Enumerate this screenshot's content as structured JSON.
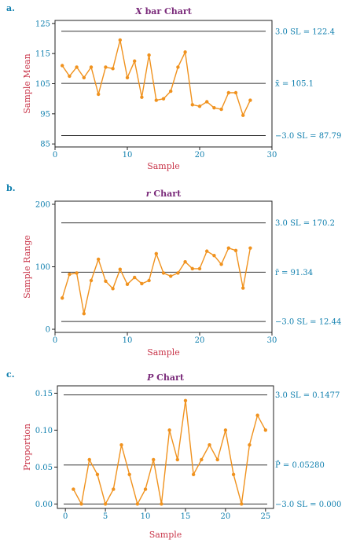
{
  "chart_data": [
    {
      "panel": "a.",
      "type": "line",
      "title": "X bar Chart",
      "title_parts": [
        "X",
        " bar Chart"
      ],
      "xlabel": "Sample",
      "ylabel": "Sample Mean",
      "xlim": [
        0,
        30
      ],
      "ylim": [
        84,
        126
      ],
      "xticks": [
        0,
        10,
        20,
        30
      ],
      "yticks": [
        85,
        95,
        105,
        115,
        125
      ],
      "x": [
        1,
        2,
        3,
        4,
        5,
        6,
        7,
        8,
        9,
        10,
        11,
        12,
        13,
        14,
        15,
        16,
        17,
        18,
        19,
        20,
        21,
        22,
        23,
        24,
        25,
        26,
        27
      ],
      "values": [
        111,
        107.5,
        110.5,
        107,
        110.5,
        101.5,
        110.5,
        110,
        119.5,
        107,
        112.5,
        100.5,
        114.5,
        99.5,
        100,
        102.5,
        110.5,
        115.5,
        98,
        97.5,
        99,
        97,
        96.5,
        102,
        102,
        94.5,
        99.5
      ],
      "limits": [
        {
          "value": 122.4,
          "label": "3.0 SL = 122.4"
        },
        {
          "value": 105.1,
          "label": "x̄ = 105.1"
        },
        {
          "value": 87.79,
          "label": "−3.0 SL = 87.79"
        }
      ]
    },
    {
      "panel": "b.",
      "type": "line",
      "title": "r Chart",
      "title_parts": [
        "r",
        " Chart"
      ],
      "xlabel": "Sample",
      "ylabel": "Sample Range",
      "xlim": [
        0,
        30
      ],
      "ylim": [
        -5,
        205
      ],
      "xticks": [
        0,
        10,
        20,
        30
      ],
      "yticks": [
        0,
        100,
        200
      ],
      "x": [
        1,
        2,
        3,
        4,
        5,
        6,
        7,
        8,
        9,
        10,
        11,
        12,
        13,
        14,
        15,
        16,
        17,
        18,
        19,
        20,
        21,
        22,
        23,
        24,
        25,
        26,
        27
      ],
      "values": [
        50,
        88,
        90,
        25,
        78,
        112,
        77,
        65,
        96,
        72,
        83,
        73,
        78,
        121,
        90,
        85,
        90,
        108,
        97,
        97,
        125,
        118,
        104,
        130,
        126,
        66,
        130
      ],
      "limits": [
        {
          "value": 170.2,
          "label": "3.0 SL = 170.2"
        },
        {
          "value": 91.34,
          "label": "r̄ = 91.34"
        },
        {
          "value": 12.44,
          "label": "−3.0 SL = 12.44"
        }
      ]
    },
    {
      "panel": "c.",
      "type": "line",
      "title": "P Chart",
      "title_parts": [
        "P",
        " Chart"
      ],
      "xlabel": "Sample",
      "ylabel": "Proportion",
      "xlim": [
        -1,
        26
      ],
      "ylim": [
        -0.006,
        0.16
      ],
      "xticks": [
        0,
        5,
        10,
        15,
        20,
        25
      ],
      "xtick_labels": [
        "0",
        "5",
        "10",
        "15",
        "20",
        "25"
      ],
      "yticks": [
        0.0,
        0.05,
        0.1,
        0.15
      ],
      "ytick_labels": [
        "0.00",
        "0.05",
        "0.10",
        "0.15"
      ],
      "x": [
        1,
        2,
        3,
        4,
        5,
        6,
        7,
        8,
        9,
        10,
        11,
        12,
        13,
        14,
        15,
        16,
        17,
        18,
        19,
        20,
        21,
        22,
        23,
        24,
        25
      ],
      "values": [
        0.02,
        0.0,
        0.06,
        0.04,
        0.0,
        0.02,
        0.08,
        0.04,
        0.0,
        0.02,
        0.06,
        0.0,
        0.1,
        0.06,
        0.14,
        0.04,
        0.06,
        0.08,
        0.06,
        0.1,
        0.04,
        0.0,
        0.08,
        0.12,
        0.1
      ],
      "limits": [
        {
          "value": 0.1477,
          "label": "3.0 SL = 0.1477"
        },
        {
          "value": 0.0528,
          "label": "P̄ = 0.05280"
        },
        {
          "value": 0.0,
          "label": "−3.0 SL = 0.000"
        }
      ]
    }
  ]
}
